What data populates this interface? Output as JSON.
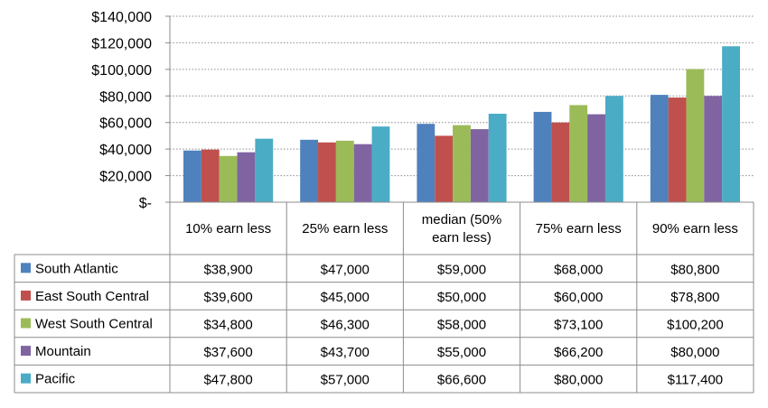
{
  "chart_data": {
    "type": "bar",
    "categories": [
      "10% earn less",
      "25% earn less",
      "median (50% earn less)",
      "75% earn less",
      "90% earn less"
    ],
    "category_lines": [
      [
        "10% earn less"
      ],
      [
        "25% earn less"
      ],
      [
        "median (50%",
        "earn less)"
      ],
      [
        "75% earn less"
      ],
      [
        "90% earn less"
      ]
    ],
    "series": [
      {
        "name": "South Atlantic",
        "color": "#4f81bd",
        "values": [
          38900,
          47000,
          59000,
          68000,
          80800
        ],
        "labels": [
          "$38,900",
          "$47,000",
          "$59,000",
          "$68,000",
          "$80,800"
        ]
      },
      {
        "name": "East South Central",
        "color": "#c0504d",
        "values": [
          39600,
          45000,
          50000,
          60000,
          78800
        ],
        "labels": [
          "$39,600",
          "$45,000",
          "$50,000",
          "$60,000",
          "$78,800"
        ]
      },
      {
        "name": "West South Central",
        "color": "#9bbb59",
        "values": [
          34800,
          46300,
          58000,
          73100,
          100200
        ],
        "labels": [
          "$34,800",
          "$46,300",
          "$58,000",
          "$73,100",
          "$100,200"
        ]
      },
      {
        "name": "Mountain",
        "color": "#8064a2",
        "values": [
          37600,
          43700,
          55000,
          66200,
          80000
        ],
        "labels": [
          "$37,600",
          "$43,700",
          "$55,000",
          "$66,200",
          "$80,000"
        ]
      },
      {
        "name": "Pacific",
        "color": "#4bacc6",
        "values": [
          47800,
          57000,
          66600,
          80000,
          117400
        ],
        "labels": [
          "$47,800",
          "$57,000",
          "$66,600",
          "$80,000",
          "$117,400"
        ]
      }
    ],
    "y_ticks": [
      0,
      20000,
      40000,
      60000,
      80000,
      100000,
      120000,
      140000
    ],
    "y_tick_labels": [
      "$-",
      "$20,000",
      "$40,000",
      "$60,000",
      "$80,000",
      "$100,000",
      "$120,000",
      "$140,000"
    ],
    "ylim": [
      0,
      140000
    ],
    "grid": true,
    "legend": "data-table-left",
    "title": "",
    "xlabel": "",
    "ylabel": ""
  }
}
